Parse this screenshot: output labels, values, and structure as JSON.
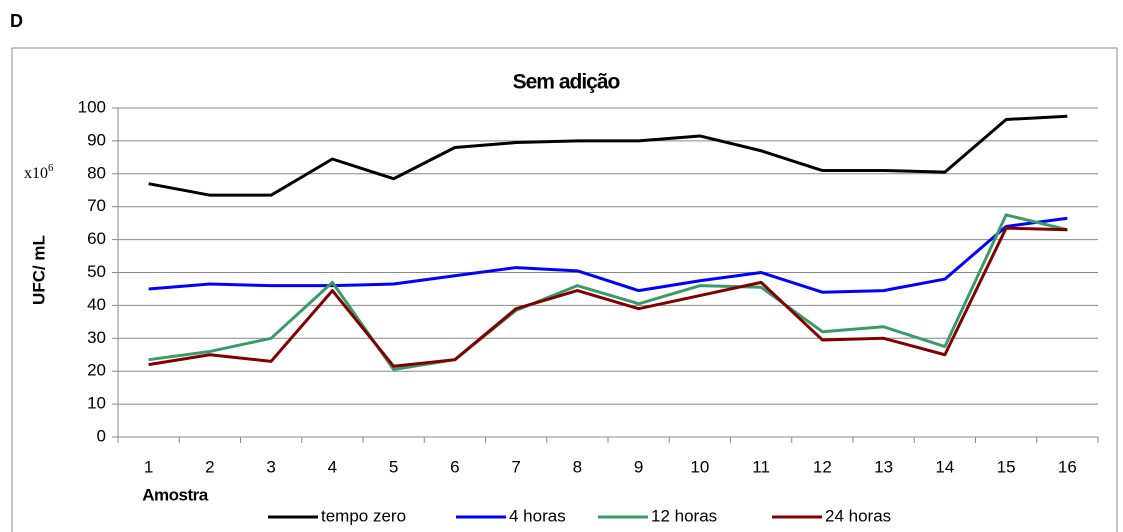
{
  "panel_label": "D",
  "chart_data": {
    "type": "line",
    "title": "Sem adição",
    "y_label": "UFC/ mL",
    "x_label": "Amostra",
    "annotation": {
      "text": "x10",
      "sup": "6"
    },
    "categories": [
      "1",
      "2",
      "3",
      "4",
      "5",
      "6",
      "7",
      "8",
      "9",
      "10",
      "11",
      "12",
      "13",
      "14",
      "15",
      "16"
    ],
    "series": [
      {
        "name": "tempo zero",
        "color": "#000000",
        "values": [
          77,
          73.5,
          73.5,
          84.5,
          78.5,
          88,
          89.5,
          90,
          90,
          91.5,
          87,
          81,
          81,
          80.5,
          96.5,
          97.5
        ]
      },
      {
        "name": "4 horas",
        "color": "#0000ff",
        "values": [
          45,
          46.5,
          46,
          46,
          46.5,
          49,
          51.5,
          50.5,
          44.5,
          47.5,
          50,
          44,
          44.5,
          48,
          64,
          66.5
        ]
      },
      {
        "name": "12 horas",
        "color": "#3a9a6a",
        "values": [
          23.5,
          26,
          30,
          47,
          20.5,
          23.5,
          38.5,
          46,
          40.5,
          46,
          45.5,
          32,
          33.5,
          27.5,
          67.5,
          63
        ]
      },
      {
        "name": "24 horas",
        "color": "#800000",
        "values": [
          22,
          25,
          23,
          44.5,
          21.5,
          23.5,
          39,
          44.5,
          39,
          43,
          47,
          29.5,
          30,
          25,
          63.5,
          63
        ]
      }
    ],
    "ylim": [
      0,
      100
    ],
    "yticks": [
      0,
      10,
      20,
      30,
      40,
      50,
      60,
      70,
      80,
      90,
      100
    ],
    "grid": true,
    "legend": "bottom"
  }
}
